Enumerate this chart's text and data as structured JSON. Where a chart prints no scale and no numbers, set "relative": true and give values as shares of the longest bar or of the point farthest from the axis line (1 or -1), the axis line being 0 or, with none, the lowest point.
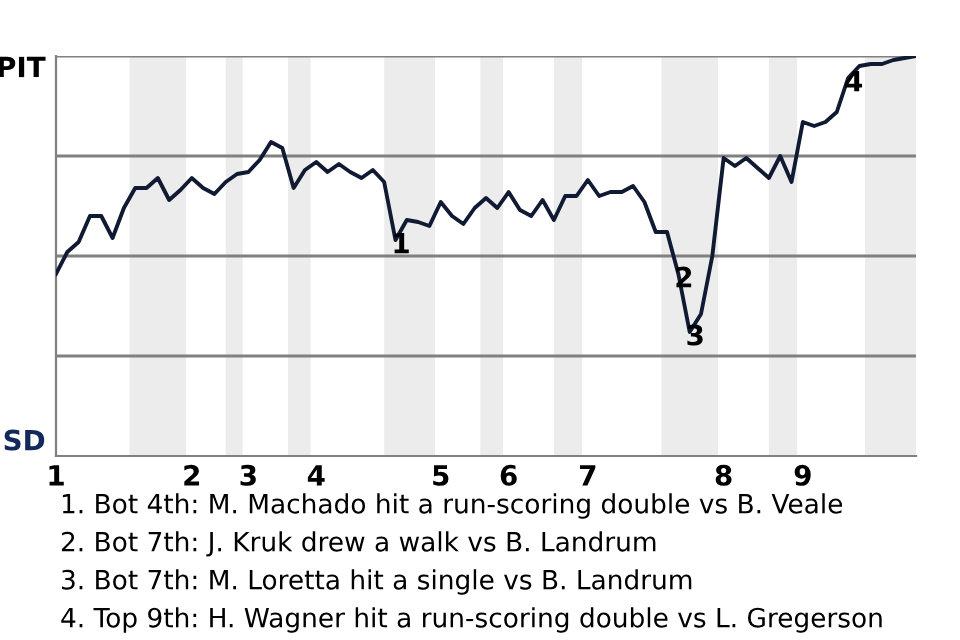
{
  "chart_data": {
    "type": "line",
    "relative": true,
    "categories": [
      "1",
      null,
      null,
      null,
      null,
      null,
      null,
      null,
      null,
      null,
      null,
      null,
      "2",
      null,
      null,
      null,
      null,
      "3",
      null,
      null,
      null,
      null,
      null,
      "4",
      null,
      null,
      null,
      null,
      null,
      null,
      null,
      null,
      null,
      null,
      "5",
      null,
      null,
      null,
      null,
      null,
      "6",
      null,
      null,
      null,
      null,
      null,
      null,
      "7",
      null,
      null,
      null,
      null,
      null,
      null,
      null,
      null,
      null,
      null,
      null,
      "8",
      null,
      null,
      null,
      null,
      null,
      null,
      "9",
      null,
      null,
      null,
      null,
      null,
      null,
      null,
      null,
      null,
      null
    ],
    "series": [
      {
        "color": "#111a33",
        "values": [
          0.455,
          0.51,
          0.535,
          0.6,
          0.6,
          0.545,
          0.62,
          0.67,
          0.67,
          0.695,
          0.64,
          0.665,
          0.695,
          0.67,
          0.655,
          0.685,
          0.705,
          0.71,
          0.74,
          0.785,
          0.77,
          0.67,
          0.715,
          0.735,
          0.71,
          0.73,
          0.71,
          0.695,
          0.715,
          0.685,
          0.54,
          0.59,
          0.585,
          0.575,
          0.635,
          0.6,
          0.58,
          0.62,
          0.645,
          0.62,
          0.66,
          0.615,
          0.6,
          0.64,
          0.59,
          0.65,
          0.65,
          0.69,
          0.65,
          0.66,
          0.66,
          0.675,
          0.635,
          0.56,
          0.56,
          0.455,
          0.31,
          0.355,
          0.5,
          0.745,
          0.725,
          0.745,
          0.72,
          0.695,
          0.75,
          0.685,
          0.835,
          0.825,
          0.835,
          0.86,
          0.945,
          0.975,
          0.98,
          0.98,
          0.99,
          0.995,
          1.0
        ],
        "name": null
      }
    ],
    "marker": "none",
    "line_style": "solid",
    "ref_lines": [
      {
        "axis": "y",
        "value": 0.25,
        "color": "#808080"
      },
      {
        "axis": "y",
        "value": 0.5,
        "color": "#808080"
      },
      {
        "axis": "y",
        "value": 0.75,
        "color": "#808080"
      },
      {
        "axis": "y",
        "value": 1.0,
        "color": "#808080"
      }
    ],
    "annotations": [
      "PIT",
      "SD",
      {
        "text": "1",
        "y": 0.54
      },
      {
        "text": "2",
        "y": 0.455
      },
      {
        "text": "3",
        "y": 0.31
      },
      {
        "text": "4",
        "y": 0.945
      },
      "1. Bot 4th: M. Machado hit a run-scoring double vs B. Veale",
      "2. Bot 7th: J. Kruk drew a walk vs B. Landrum",
      "3. Bot 7th: M. Loretta hit a single vs B. Landrum",
      "4. Top 9th: H. Wagner hit a run-scoring double vs L. Gregerson"
    ]
  }
}
